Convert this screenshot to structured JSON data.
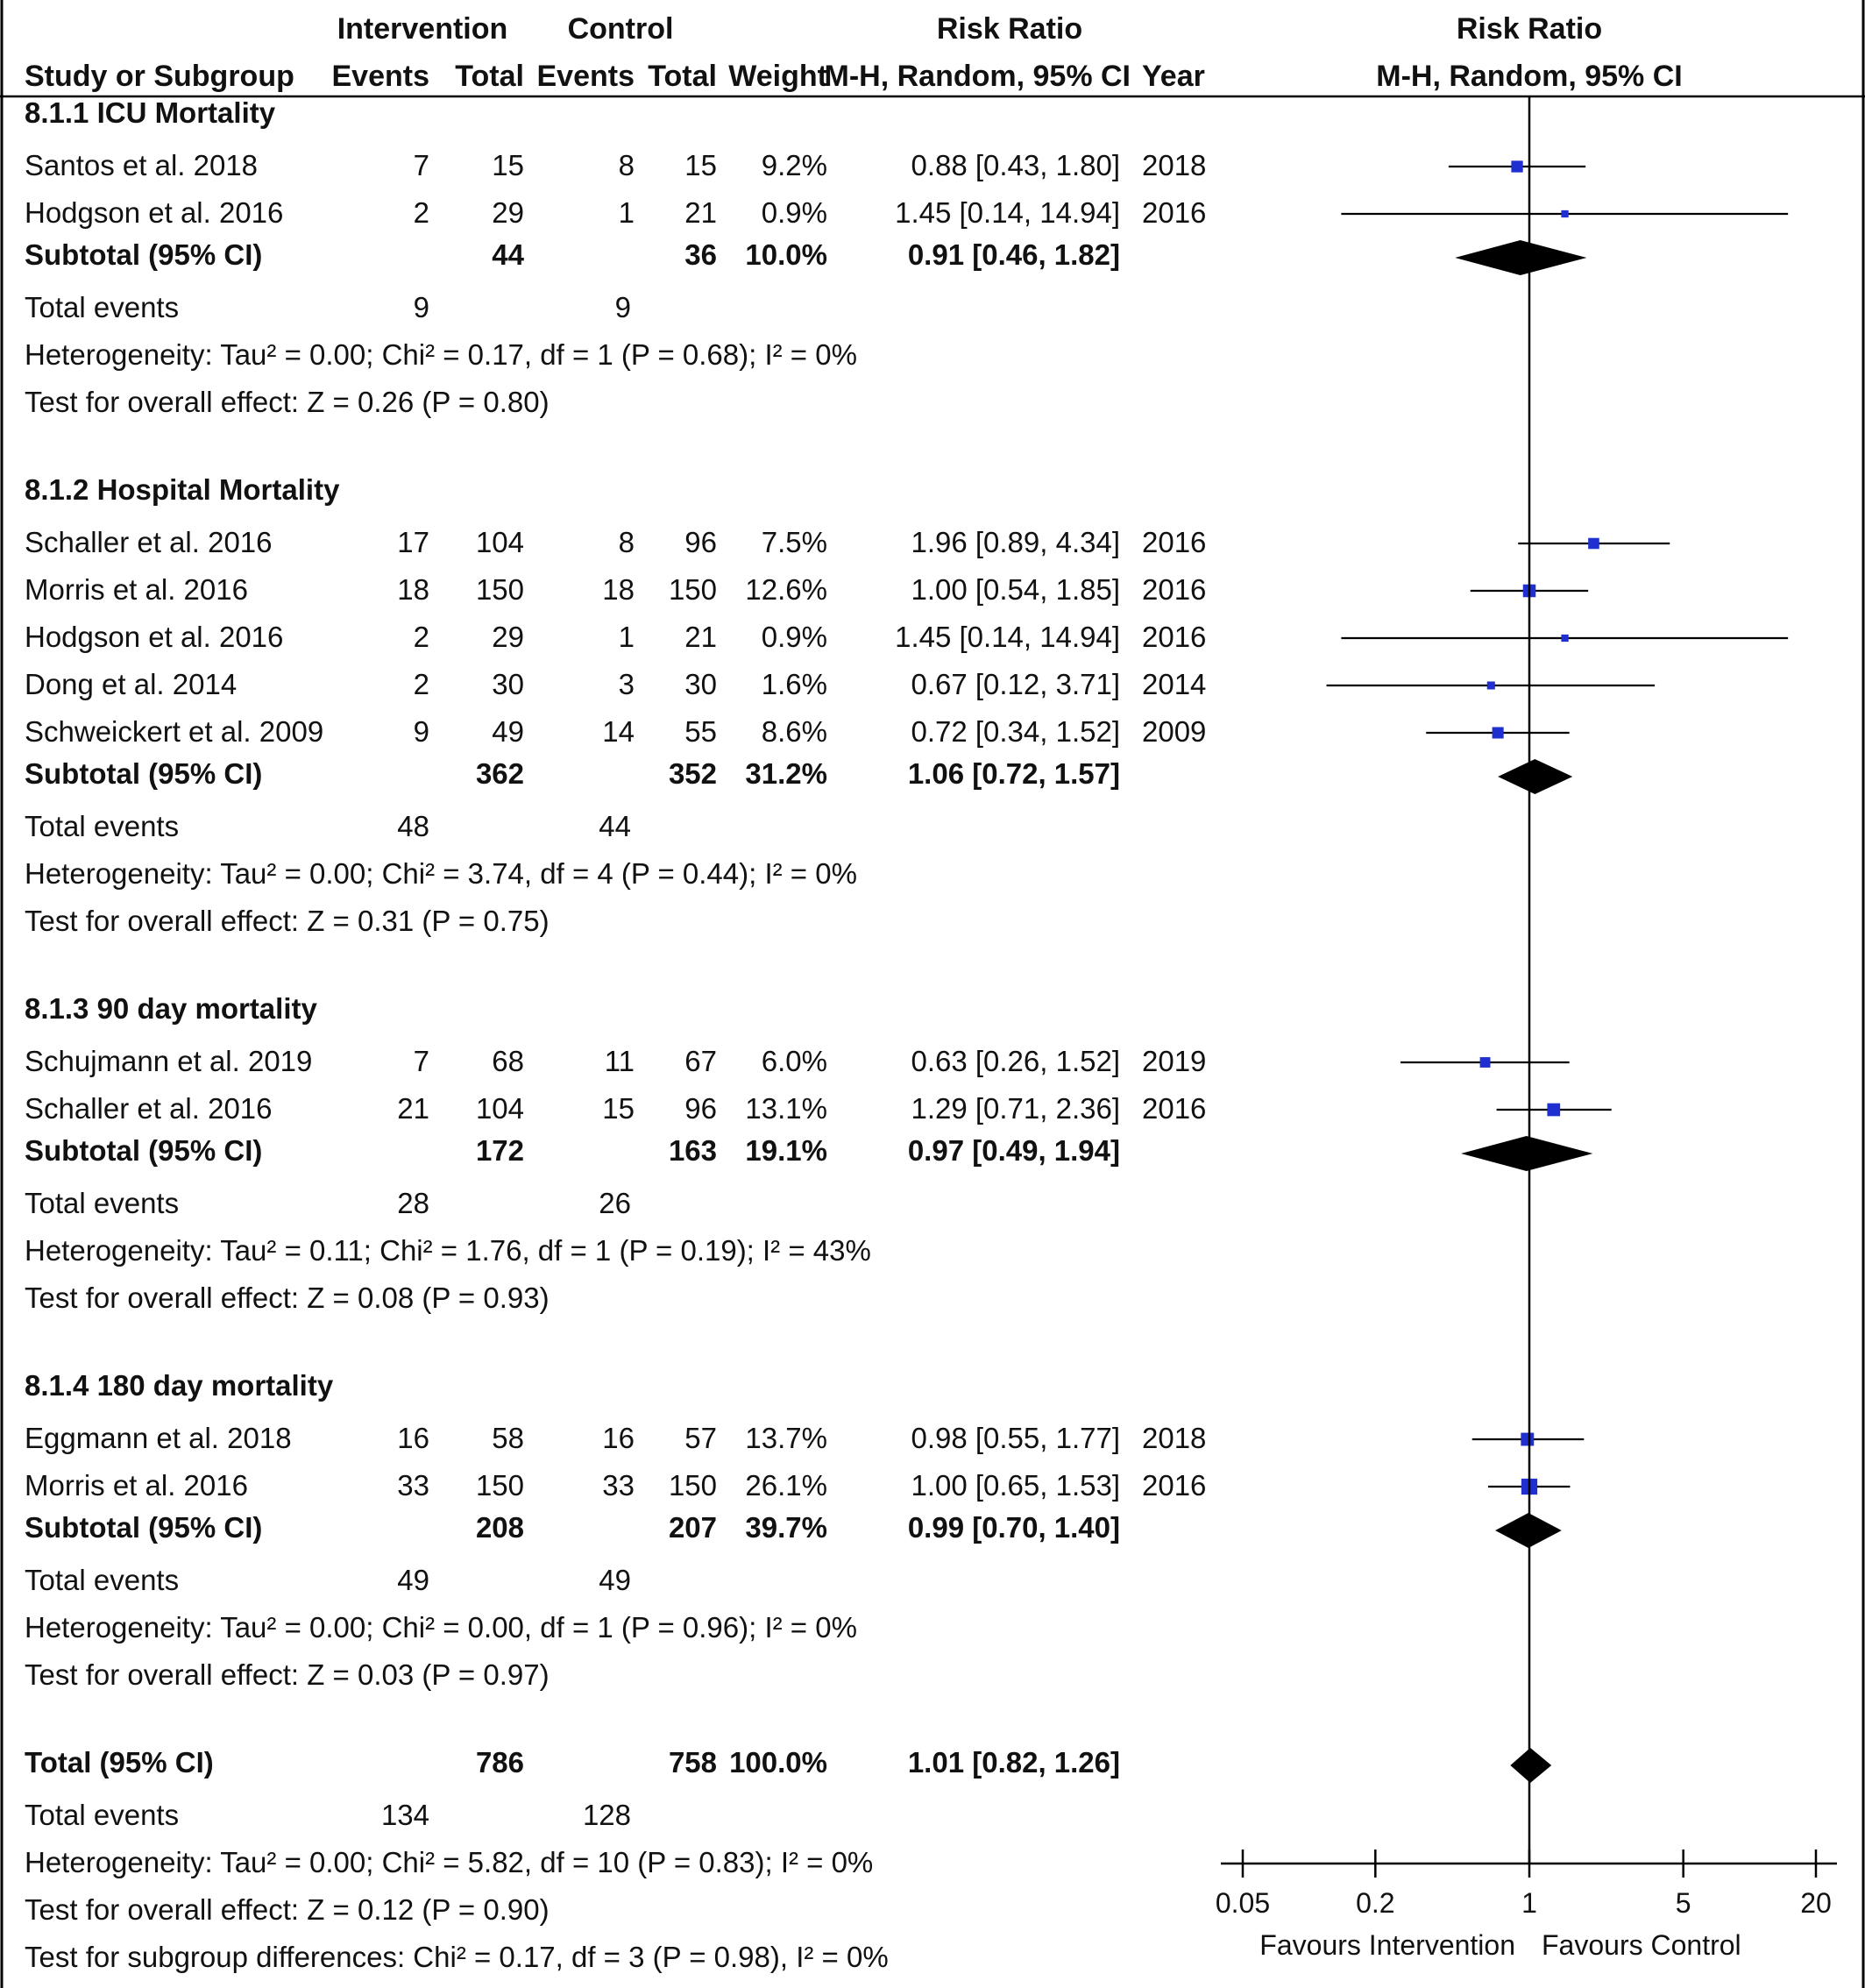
{
  "header": {
    "group_intervention": "Intervention",
    "group_control": "Control",
    "group_rr": "Risk Ratio",
    "group_plot": "Risk Ratio",
    "col_study": "Study or Subgroup",
    "col_i_events": "Events",
    "col_i_total": "Total",
    "col_c_events": "Events",
    "col_c_total": "Total",
    "col_weight": "Weight",
    "col_rr": "M-H, Random, 95% CI",
    "col_year": "Year",
    "col_plot": "M-H, Random, 95% CI"
  },
  "chart_data": {
    "type": "forest",
    "scale": "log",
    "xlim": [
      0.05,
      20
    ],
    "ticks": [
      {
        "value": 0.05,
        "label": "0.05"
      },
      {
        "value": 0.2,
        "label": "0.2"
      },
      {
        "value": 1,
        "label": "1"
      },
      {
        "value": 5,
        "label": "5"
      },
      {
        "value": 20,
        "label": "20"
      }
    ],
    "favours_left": "Favours Intervention",
    "favours_right": "Favours Control",
    "subgroups": [
      {
        "title": "8.1.1 ICU Mortality",
        "studies": [
          {
            "name": "Santos et al. 2018",
            "ie": "7",
            "it": "15",
            "ce": "8",
            "ct": "15",
            "weight": "9.2%",
            "ci_text": "0.88 [0.43, 1.80]",
            "year": "2018",
            "rr": 0.88,
            "lo": 0.43,
            "hi": 1.8
          },
          {
            "name": "Hodgson et al. 2016",
            "ie": "2",
            "it": "29",
            "ce": "1",
            "ct": "21",
            "weight": "0.9%",
            "ci_text": "1.45 [0.14, 14.94]",
            "year": "2016",
            "rr": 1.45,
            "lo": 0.14,
            "hi": 14.94
          }
        ],
        "subtotal": {
          "label": "Subtotal (95% CI)",
          "it": "44",
          "ct": "36",
          "weight": "10.0%",
          "ci_text": "0.91 [0.46, 1.82]",
          "rr": 0.91,
          "lo": 0.46,
          "hi": 1.82
        },
        "events_label": "Total events",
        "events_i": "9",
        "events_c": "9",
        "heterogeneity": "Heterogeneity: Tau² = 0.00; Chi² = 0.17, df = 1 (P = 0.68); I² = 0%",
        "overall": "Test for overall effect: Z = 0.26 (P = 0.80)"
      },
      {
        "title": "8.1.2 Hospital Mortality",
        "studies": [
          {
            "name": "Schaller et al. 2016",
            "ie": "17",
            "it": "104",
            "ce": "8",
            "ct": "96",
            "weight": "7.5%",
            "ci_text": "1.96 [0.89, 4.34]",
            "year": "2016",
            "rr": 1.96,
            "lo": 0.89,
            "hi": 4.34
          },
          {
            "name": "Morris et al. 2016",
            "ie": "18",
            "it": "150",
            "ce": "18",
            "ct": "150",
            "weight": "12.6%",
            "ci_text": "1.00 [0.54, 1.85]",
            "year": "2016",
            "rr": 1.0,
            "lo": 0.54,
            "hi": 1.85
          },
          {
            "name": "Hodgson et al. 2016",
            "ie": "2",
            "it": "29",
            "ce": "1",
            "ct": "21",
            "weight": "0.9%",
            "ci_text": "1.45 [0.14, 14.94]",
            "year": "2016",
            "rr": 1.45,
            "lo": 0.14,
            "hi": 14.94
          },
          {
            "name": "Dong et al. 2014",
            "ie": "2",
            "it": "30",
            "ce": "3",
            "ct": "30",
            "weight": "1.6%",
            "ci_text": "0.67 [0.12, 3.71]",
            "year": "2014",
            "rr": 0.67,
            "lo": 0.12,
            "hi": 3.71
          },
          {
            "name": "Schweickert et al. 2009",
            "ie": "9",
            "it": "49",
            "ce": "14",
            "ct": "55",
            "weight": "8.6%",
            "ci_text": "0.72 [0.34, 1.52]",
            "year": "2009",
            "rr": 0.72,
            "lo": 0.34,
            "hi": 1.52
          }
        ],
        "subtotal": {
          "label": "Subtotal (95% CI)",
          "it": "362",
          "ct": "352",
          "weight": "31.2%",
          "ci_text": "1.06 [0.72, 1.57]",
          "rr": 1.06,
          "lo": 0.72,
          "hi": 1.57
        },
        "events_label": "Total events",
        "events_i": "48",
        "events_c": "44",
        "heterogeneity": "Heterogeneity: Tau² = 0.00; Chi² = 3.74, df = 4 (P = 0.44); I² = 0%",
        "overall": "Test for overall effect: Z = 0.31 (P = 0.75)"
      },
      {
        "title": "8.1.3 90 day mortality",
        "studies": [
          {
            "name": "Schujmann et al. 2019",
            "ie": "7",
            "it": "68",
            "ce": "11",
            "ct": "67",
            "weight": "6.0%",
            "ci_text": "0.63 [0.26, 1.52]",
            "year": "2019",
            "rr": 0.63,
            "lo": 0.26,
            "hi": 1.52
          },
          {
            "name": "Schaller et al. 2016",
            "ie": "21",
            "it": "104",
            "ce": "15",
            "ct": "96",
            "weight": "13.1%",
            "ci_text": "1.29 [0.71, 2.36]",
            "year": "2016",
            "rr": 1.29,
            "lo": 0.71,
            "hi": 2.36
          }
        ],
        "subtotal": {
          "label": "Subtotal (95% CI)",
          "it": "172",
          "ct": "163",
          "weight": "19.1%",
          "ci_text": "0.97 [0.49, 1.94]",
          "rr": 0.97,
          "lo": 0.49,
          "hi": 1.94
        },
        "events_label": "Total events",
        "events_i": "28",
        "events_c": "26",
        "heterogeneity": "Heterogeneity: Tau² = 0.11; Chi² = 1.76, df = 1 (P = 0.19); I² = 43%",
        "overall": "Test for overall effect: Z = 0.08 (P = 0.93)"
      },
      {
        "title": "8.1.4 180 day mortality",
        "studies": [
          {
            "name": "Eggmann et al. 2018",
            "ie": "16",
            "it": "58",
            "ce": "16",
            "ct": "57",
            "weight": "13.7%",
            "ci_text": "0.98 [0.55, 1.77]",
            "year": "2018",
            "rr": 0.98,
            "lo": 0.55,
            "hi": 1.77
          },
          {
            "name": "Morris et al. 2016",
            "ie": "33",
            "it": "150",
            "ce": "33",
            "ct": "150",
            "weight": "26.1%",
            "ci_text": "1.00 [0.65, 1.53]",
            "year": "2016",
            "rr": 1.0,
            "lo": 0.65,
            "hi": 1.53
          }
        ],
        "subtotal": {
          "label": "Subtotal (95% CI)",
          "it": "208",
          "ct": "207",
          "weight": "39.7%",
          "ci_text": "0.99 [0.70, 1.40]",
          "rr": 0.99,
          "lo": 0.7,
          "hi": 1.4
        },
        "events_label": "Total events",
        "events_i": "49",
        "events_c": "49",
        "heterogeneity": "Heterogeneity: Tau² = 0.00; Chi² = 0.00, df = 1 (P = 0.96); I² = 0%",
        "overall": "Test for overall effect: Z = 0.03 (P = 0.97)"
      }
    ],
    "total": {
      "label": "Total (95% CI)",
      "it": "786",
      "ct": "758",
      "weight": "100.0%",
      "ci_text": "1.01 [0.82, 1.26]",
      "rr": 1.01,
      "lo": 0.82,
      "hi": 1.26,
      "events_label": "Total events",
      "events_i": "134",
      "events_c": "128",
      "heterogeneity": "Heterogeneity: Tau² = 0.00; Chi² = 5.82, df = 10 (P = 0.83); I² = 0%",
      "overall": "Test for overall effect: Z = 0.12 (P = 0.90)",
      "subgroup_diff": "Test for subgroup differences: Chi² = 0.17, df = 3 (P = 0.98), I² = 0%"
    },
    "colors": {
      "study_marker": "#1f2fd0",
      "diamond": "#000000",
      "line": "#000000"
    }
  }
}
